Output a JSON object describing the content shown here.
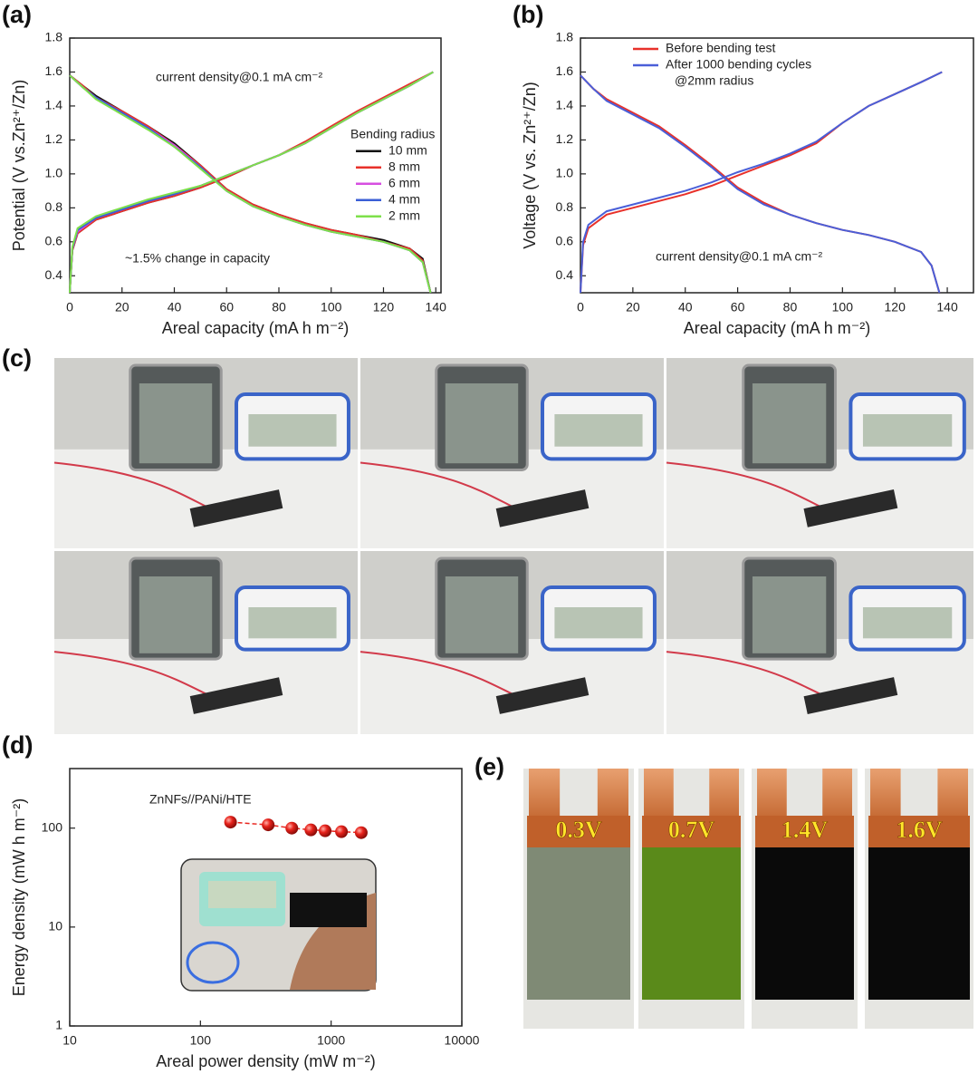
{
  "chart_data": [
    {
      "type": "line",
      "panel_label": "(a)",
      "x_label": "Areal capacity (mA h m⁻²)",
      "y_label": "Potential (V vs.Zn²⁺/Zn)",
      "x": [
        0,
        1,
        3,
        10,
        20,
        30,
        40,
        50,
        60,
        70,
        80,
        90,
        100,
        110,
        120,
        130,
        139,
        null,
        0,
        5,
        10,
        20,
        30,
        40,
        50,
        60,
        70,
        80,
        90,
        100,
        110,
        120,
        130,
        135,
        138
      ],
      "series": [
        {
          "name": "10 mm",
          "color": "#111111",
          "values": [
            0.3,
            0.55,
            0.65,
            0.73,
            0.78,
            0.83,
            0.87,
            0.92,
            0.98,
            1.05,
            1.11,
            1.18,
            1.27,
            1.36,
            1.44,
            1.52,
            1.6,
            null,
            1.58,
            1.52,
            1.46,
            1.37,
            1.28,
            1.18,
            1.05,
            0.91,
            0.82,
            0.76,
            0.71,
            0.67,
            0.64,
            0.61,
            0.56,
            0.5,
            0.3
          ]
        },
        {
          "name": "8 mm",
          "color": "#e8312a",
          "values": [
            0.3,
            0.55,
            0.65,
            0.73,
            0.78,
            0.83,
            0.87,
            0.92,
            0.98,
            1.05,
            1.11,
            1.19,
            1.28,
            1.37,
            1.45,
            1.53,
            1.6,
            null,
            1.58,
            1.52,
            1.45,
            1.37,
            1.28,
            1.17,
            1.05,
            0.91,
            0.82,
            0.76,
            0.71,
            0.67,
            0.64,
            0.6,
            0.56,
            0.49,
            0.3
          ]
        },
        {
          "name": "6 mm",
          "color": "#d64ee0",
          "values": [
            0.3,
            0.56,
            0.66,
            0.74,
            0.79,
            0.84,
            0.88,
            0.93,
            0.99,
            1.05,
            1.11,
            1.18,
            1.27,
            1.36,
            1.44,
            1.52,
            1.6,
            null,
            1.58,
            1.51,
            1.45,
            1.36,
            1.27,
            1.17,
            1.04,
            0.9,
            0.81,
            0.75,
            0.7,
            0.66,
            0.63,
            0.6,
            0.55,
            0.48,
            0.3
          ]
        },
        {
          "name": "4 mm",
          "color": "#3b5fd6",
          "values": [
            0.3,
            0.56,
            0.67,
            0.74,
            0.79,
            0.84,
            0.88,
            0.93,
            0.99,
            1.05,
            1.11,
            1.18,
            1.27,
            1.36,
            1.44,
            1.52,
            1.6,
            null,
            1.58,
            1.51,
            1.45,
            1.36,
            1.27,
            1.16,
            1.04,
            0.9,
            0.81,
            0.75,
            0.7,
            0.66,
            0.63,
            0.6,
            0.55,
            0.48,
            0.3
          ]
        },
        {
          "name": "2 mm",
          "color": "#7ee04a",
          "values": [
            0.3,
            0.57,
            0.68,
            0.75,
            0.8,
            0.85,
            0.89,
            0.93,
            0.99,
            1.05,
            1.11,
            1.18,
            1.27,
            1.36,
            1.44,
            1.52,
            1.6,
            null,
            1.58,
            1.51,
            1.44,
            1.35,
            1.26,
            1.16,
            1.03,
            0.9,
            0.81,
            0.75,
            0.7,
            0.66,
            0.63,
            0.6,
            0.55,
            0.48,
            0.3
          ]
        }
      ],
      "legend": "center right",
      "legend_title": "Bending radius",
      "annotations": [
        {
          "text": "current density@0.1 mA cm⁻²",
          "color": "#222222"
        },
        {
          "text": "~1.5% change in capacity",
          "color": "#3c5ad0"
        }
      ],
      "xlim": [
        0,
        142
      ],
      "xticks": [
        0,
        20,
        40,
        60,
        80,
        100,
        120,
        140
      ],
      "ylim": [
        0.3,
        1.8
      ],
      "yticks": [
        0.4,
        0.6,
        0.8,
        {
          "value": 1,
          "label": "1.0"
        },
        1.2,
        1.4,
        1.6,
        1.8
      ]
    },
    {
      "type": "line",
      "panel_label": "(b)",
      "x_label": "Areal capacity (mA h m⁻²)",
      "y_label": "Voltage (V vs. Zn²⁺/Zn)",
      "x": [
        0,
        1,
        3,
        10,
        20,
        30,
        40,
        50,
        60,
        70,
        80,
        90,
        100,
        110,
        120,
        130,
        138,
        null,
        0,
        5,
        10,
        20,
        30,
        40,
        50,
        60,
        70,
        80,
        90,
        100,
        110,
        120,
        130,
        134,
        137
      ],
      "series": [
        {
          "name": "Before bending test",
          "color": "#e8312a",
          "values": [
            0.3,
            0.58,
            0.68,
            0.76,
            0.8,
            0.84,
            0.88,
            0.93,
            0.99,
            1.05,
            1.11,
            1.18,
            1.3,
            1.4,
            1.47,
            1.54,
            1.6,
            null,
            1.58,
            1.5,
            1.44,
            1.36,
            1.28,
            1.17,
            1.05,
            0.92,
            0.83,
            0.76,
            0.71,
            0.67,
            0.64,
            0.6,
            0.54,
            0.46,
            0.3
          ]
        },
        {
          "name": "After 1000 bending cycles",
          "color": "#4a5fd8",
          "values": [
            0.3,
            0.6,
            0.7,
            0.78,
            0.82,
            0.86,
            0.9,
            0.95,
            1.01,
            1.06,
            1.12,
            1.19,
            1.3,
            1.4,
            1.47,
            1.54,
            1.6,
            null,
            1.58,
            1.5,
            1.43,
            1.35,
            1.27,
            1.16,
            1.04,
            0.91,
            0.82,
            0.76,
            0.71,
            0.67,
            0.64,
            0.6,
            0.54,
            0.46,
            0.3
          ]
        }
      ],
      "legend": "upper left",
      "legend_note": "@2mm radius",
      "annotations": [
        {
          "text": "current density@0.1 mA cm⁻²",
          "color": "#222222"
        }
      ],
      "xlim": [
        0,
        150
      ],
      "xticks": [
        0,
        20,
        40,
        60,
        80,
        100,
        120,
        140
      ],
      "ylim": [
        0.3,
        1.8
      ],
      "yticks": [
        0.4,
        0.6,
        0.8,
        {
          "value": 1,
          "label": "1.0"
        },
        1.2,
        1.4,
        1.6,
        1.8
      ]
    },
    {
      "type": "scatter",
      "panel_label": "(d)",
      "x_label": "Areal power density (mW m⁻²)",
      "y_label": "Energy density (mW h m⁻²)",
      "x": [
        170,
        330,
        500,
        700,
        900,
        1200,
        1700
      ],
      "series": [
        {
          "name": "ZnNFs//PANi/HTE",
          "color": "#e8231c",
          "values": [
            115,
            108,
            100,
            96,
            94,
            92,
            90
          ]
        }
      ],
      "xscale": "log",
      "yscale": "log",
      "xlim": [
        10,
        10000
      ],
      "xticks": [
        10,
        100,
        1000,
        10000
      ],
      "ylim": [
        1,
        400
      ],
      "yticks": [
        1,
        10,
        100
      ]
    }
  ],
  "photo_panels": [
    {
      "panel_label": "(c)"
    },
    {
      "panel_label": "(e)",
      "labels": [
        "0.3V",
        "0.7V",
        "1.4V",
        "1.6V"
      ]
    }
  ]
}
